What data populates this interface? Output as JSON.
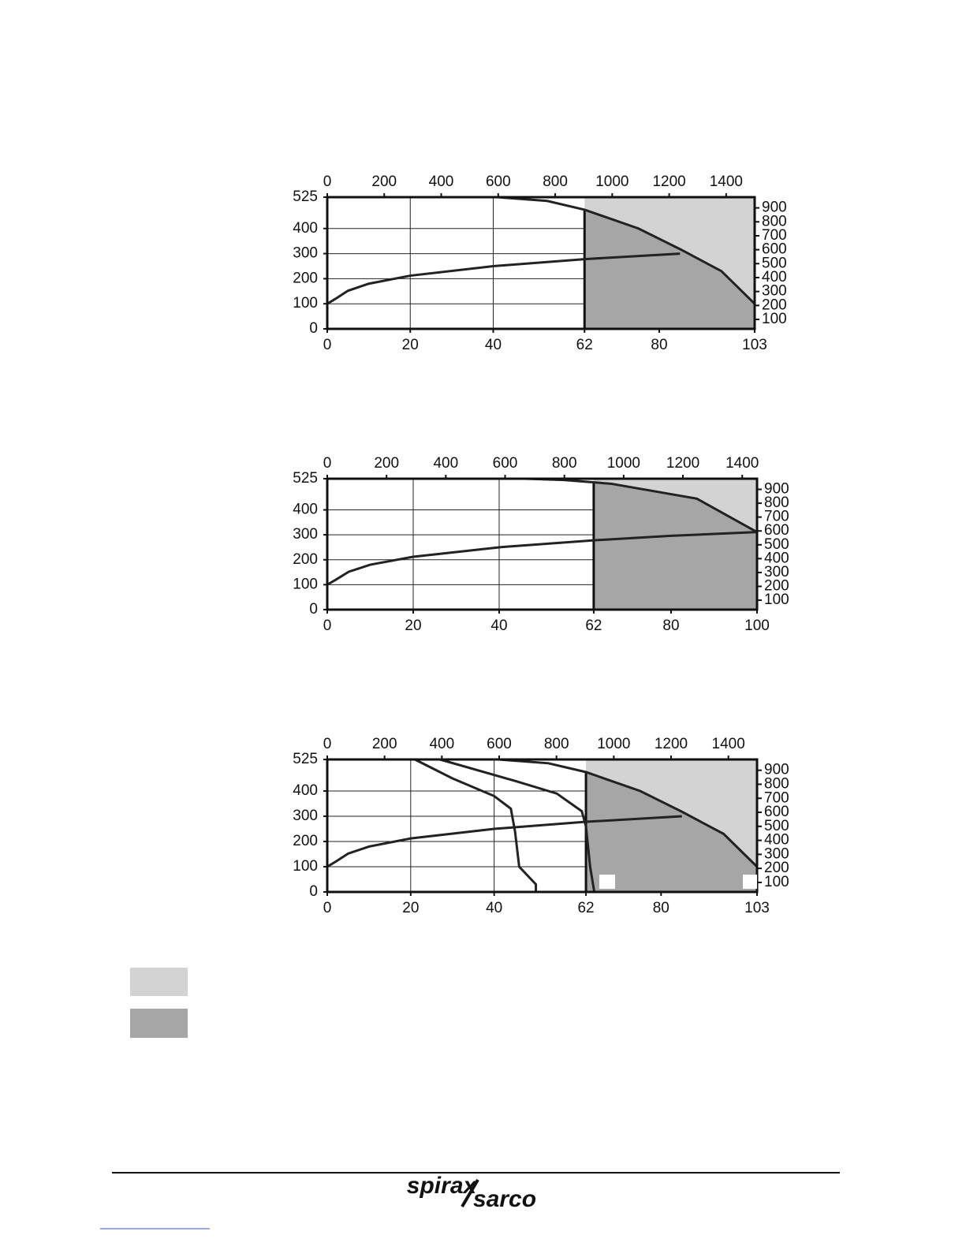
{
  "chart_data": [
    {
      "type": "line",
      "xlim": [
        0,
        103
      ],
      "xticks": [
        0,
        20,
        40,
        62,
        80,
        103
      ],
      "ylim": [
        0,
        525
      ],
      "yticks": [
        0,
        100,
        200,
        300,
        400,
        525
      ],
      "x2lim": [
        0,
        1500
      ],
      "x2ticks": [
        0,
        200,
        400,
        600,
        800,
        1000,
        1200,
        1400
      ],
      "y2lim": [
        32,
        977
      ],
      "y2ticks": [
        100,
        200,
        300,
        400,
        500,
        600,
        700,
        800,
        900
      ],
      "region": {
        "x0": 62,
        "color_above": "#d3d3d3",
        "color_below": "#a6a6a6"
      },
      "limit_curve": {
        "color": "#222222",
        "x": [
          41,
          53,
          62,
          75,
          85,
          95,
          103
        ],
        "values": [
          525,
          510,
          475,
          400,
          318,
          230,
          100
        ]
      },
      "saturation_curve": {
        "color": "#222222",
        "x": [
          0,
          2,
          5,
          10,
          20,
          40,
          62,
          85
        ],
        "values": [
          100,
          120,
          152,
          180,
          212,
          250,
          278,
          300
        ]
      },
      "other_curves": []
    },
    {
      "type": "line",
      "xlim": [
        0,
        100
      ],
      "xticks": [
        0,
        20,
        40,
        62,
        80,
        100
      ],
      "ylim": [
        0,
        525
      ],
      "yticks": [
        0,
        100,
        200,
        300,
        400,
        525
      ],
      "x2lim": [
        0,
        1450
      ],
      "x2ticks": [
        0,
        200,
        400,
        600,
        800,
        1000,
        1200,
        1400
      ],
      "y2lim": [
        32,
        977
      ],
      "y2ticks": [
        100,
        200,
        300,
        400,
        500,
        600,
        700,
        800,
        900
      ],
      "region": {
        "x0": 62,
        "color_above": "#d3d3d3",
        "color_below": "#a6a6a6"
      },
      "limit_curve": {
        "color": "#222222",
        "x": [
          46,
          55,
          66,
          86,
          100
        ],
        "values": [
          525,
          520,
          505,
          445,
          311
        ]
      },
      "saturation_curve": {
        "color": "#222222",
        "x": [
          0,
          2,
          5,
          10,
          20,
          40,
          62,
          80,
          100
        ],
        "values": [
          100,
          120,
          152,
          180,
          212,
          250,
          278,
          296,
          311
        ]
      },
      "other_curves": []
    },
    {
      "type": "line",
      "xlim": [
        0,
        103
      ],
      "xticks": [
        0,
        20,
        40,
        62,
        80,
        103
      ],
      "ylim": [
        0,
        525
      ],
      "yticks": [
        0,
        100,
        200,
        300,
        400,
        525
      ],
      "x2lim": [
        0,
        1500
      ],
      "x2ticks": [
        0,
        200,
        400,
        600,
        800,
        1000,
        1200,
        1400
      ],
      "y2lim": [
        32,
        977
      ],
      "y2ticks": [
        100,
        200,
        300,
        400,
        500,
        600,
        700,
        800,
        900
      ],
      "region": {
        "x0": 62,
        "color_above": "#d3d3d3",
        "color_below": "#a6a6a6"
      },
      "limit_curve": {
        "color": "#222222",
        "x": [
          41,
          53,
          62,
          75,
          85,
          95,
          103
        ],
        "values": [
          525,
          510,
          475,
          400,
          318,
          230,
          100
        ]
      },
      "saturation_curve": {
        "color": "#222222",
        "x": [
          0,
          2,
          5,
          10,
          20,
          40,
          62,
          85
        ],
        "values": [
          100,
          120,
          152,
          180,
          212,
          250,
          278,
          300
        ]
      },
      "other_curves": [
        {
          "color": "#222222",
          "x": [
            21,
            30,
            40,
            44,
            45,
            46,
            50,
            50
          ],
          "values": [
            525,
            450,
            380,
            330,
            240,
            100,
            30,
            0
          ]
        },
        {
          "color": "#222222",
          "x": [
            27,
            45,
            55,
            61,
            62,
            63,
            64
          ],
          "values": [
            525,
            440,
            390,
            320,
            260,
            100,
            0
          ]
        }
      ]
    }
  ],
  "footer": {
    "logo_top": "spirax",
    "logo_bottom": "sarco"
  }
}
